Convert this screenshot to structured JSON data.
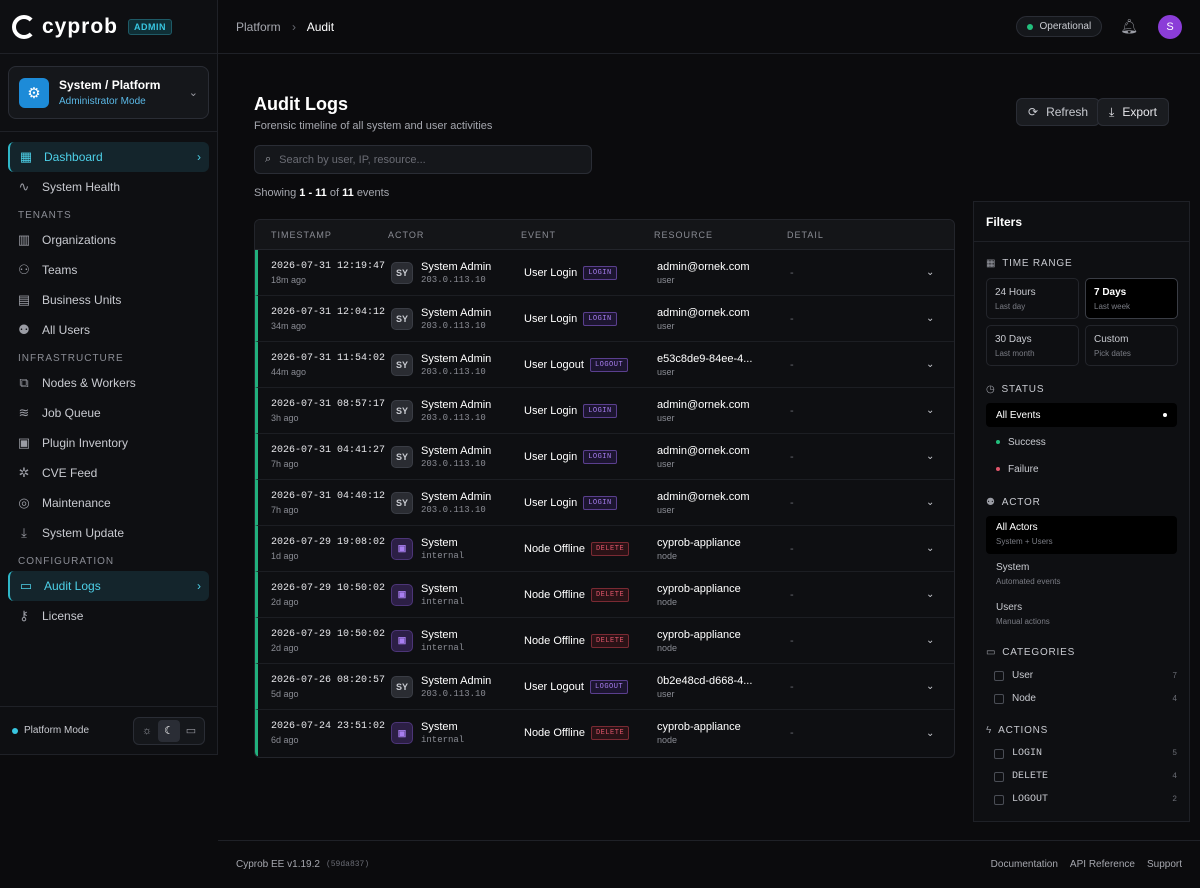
{
  "brand": {
    "name": "cyprob",
    "badge": "ADMIN"
  },
  "context": {
    "title": "System / Platform",
    "subtitle": "Administrator Mode"
  },
  "nav": {
    "top": [
      {
        "label": "Dashboard",
        "icon": "grid-icon",
        "active": true
      },
      {
        "label": "System Health",
        "icon": "pulse-icon"
      }
    ],
    "tenants_heading": "TENANTS",
    "tenants": [
      {
        "label": "Organizations",
        "icon": "building-icon"
      },
      {
        "label": "Teams",
        "icon": "team-icon"
      },
      {
        "label": "Business Units",
        "icon": "briefcase-icon"
      },
      {
        "label": "All Users",
        "icon": "users-icon"
      }
    ],
    "infra_heading": "INFRASTRUCTURE",
    "infra": [
      {
        "label": "Nodes & Workers",
        "icon": "server-icon"
      },
      {
        "label": "Job Queue",
        "icon": "layers-icon"
      },
      {
        "label": "Plugin Inventory",
        "icon": "plugin-icon"
      },
      {
        "label": "CVE Feed",
        "icon": "bug-icon"
      },
      {
        "label": "Maintenance",
        "icon": "database-icon"
      },
      {
        "label": "System Update",
        "icon": "download-icon"
      }
    ],
    "config_heading": "CONFIGURATION",
    "config": [
      {
        "label": "Audit Logs",
        "icon": "log-icon",
        "active": true
      },
      {
        "label": "License",
        "icon": "key-icon"
      }
    ]
  },
  "sidebar_footer": {
    "mode": "Platform Mode",
    "mode_color": "#38c6e0"
  },
  "breadcrumb": {
    "root": "Platform",
    "current": "Audit"
  },
  "status": {
    "label": "Operational",
    "color": "#22c07d"
  },
  "user": {
    "initial": "S",
    "color": "#8b3dd8"
  },
  "page": {
    "title": "Audit Logs",
    "subtitle": "Forensic timeline of all system and user activities",
    "refresh_label": "Refresh",
    "export_label": "Export",
    "search_placeholder": "Search by user, IP, resource...",
    "showing_prefix": "Showing",
    "showing_range": "1 - 11",
    "showing_of": "of",
    "showing_total": "11",
    "showing_suffix": "events"
  },
  "table": {
    "columns": [
      "TIMESTAMP",
      "ACTOR",
      "EVENT",
      "RESOURCE",
      "DETAIL"
    ],
    "rows": [
      {
        "ts": "2026-07-31 12:19:47",
        "ago": "18m ago",
        "avatar": "SY",
        "kind": "sy",
        "actor": "System Admin",
        "actor_sub": "203.0.113.10",
        "event": "User Login",
        "tag": "LOGIN",
        "res": "admin@ornek.com",
        "res_type": "user",
        "detail": "-"
      },
      {
        "ts": "2026-07-31 12:04:12",
        "ago": "34m ago",
        "avatar": "SY",
        "kind": "sy",
        "actor": "System Admin",
        "actor_sub": "203.0.113.10",
        "event": "User Login",
        "tag": "LOGIN",
        "res": "admin@ornek.com",
        "res_type": "user",
        "detail": "-"
      },
      {
        "ts": "2026-07-31 11:54:02",
        "ago": "44m ago",
        "avatar": "SY",
        "kind": "sy",
        "actor": "System Admin",
        "actor_sub": "203.0.113.10",
        "event": "User Logout",
        "tag": "LOGOUT",
        "res": "e53c8de9-84ee-4...",
        "res_type": "user",
        "detail": "-"
      },
      {
        "ts": "2026-07-31 08:57:17",
        "ago": "3h ago",
        "avatar": "SY",
        "kind": "sy",
        "actor": "System Admin",
        "actor_sub": "203.0.113.10",
        "event": "User Login",
        "tag": "LOGIN",
        "res": "admin@ornek.com",
        "res_type": "user",
        "detail": "-"
      },
      {
        "ts": "2026-07-31 04:41:27",
        "ago": "7h ago",
        "avatar": "SY",
        "kind": "sy",
        "actor": "System Admin",
        "actor_sub": "203.0.113.10",
        "event": "User Login",
        "tag": "LOGIN",
        "res": "admin@ornek.com",
        "res_type": "user",
        "detail": "-"
      },
      {
        "ts": "2026-07-31 04:40:12",
        "ago": "7h ago",
        "avatar": "SY",
        "kind": "sy",
        "actor": "System Admin",
        "actor_sub": "203.0.113.10",
        "event": "User Login",
        "tag": "LOGIN",
        "res": "admin@ornek.com",
        "res_type": "user",
        "detail": "-"
      },
      {
        "ts": "2026-07-29 19:08:02",
        "ago": "1d ago",
        "avatar": "",
        "kind": "sys",
        "actor": "System",
        "actor_sub": "internal",
        "event": "Node Offline",
        "tag": "DELETE",
        "res": "cyprob-appliance",
        "res_type": "node",
        "detail": "-"
      },
      {
        "ts": "2026-07-29 10:50:02",
        "ago": "2d ago",
        "avatar": "",
        "kind": "sys",
        "actor": "System",
        "actor_sub": "internal",
        "event": "Node Offline",
        "tag": "DELETE",
        "res": "cyprob-appliance",
        "res_type": "node",
        "detail": "-"
      },
      {
        "ts": "2026-07-29 10:50:02",
        "ago": "2d ago",
        "avatar": "",
        "kind": "sys",
        "actor": "System",
        "actor_sub": "internal",
        "event": "Node Offline",
        "tag": "DELETE",
        "res": "cyprob-appliance",
        "res_type": "node",
        "detail": "-"
      },
      {
        "ts": "2026-07-26 08:20:57",
        "ago": "5d ago",
        "avatar": "SY",
        "kind": "sy",
        "actor": "System Admin",
        "actor_sub": "203.0.113.10",
        "event": "User Logout",
        "tag": "LOGOUT",
        "res": "0b2e48cd-d668-4...",
        "res_type": "user",
        "detail": "-"
      },
      {
        "ts": "2026-07-24 23:51:02",
        "ago": "6d ago",
        "avatar": "",
        "kind": "sys",
        "actor": "System",
        "actor_sub": "internal",
        "event": "Node Offline",
        "tag": "DELETE",
        "res": "cyprob-appliance",
        "res_type": "node",
        "detail": "-"
      }
    ]
  },
  "filters": {
    "title": "Filters",
    "time_heading": "TIME RANGE",
    "time": [
      {
        "label": "24 Hours",
        "sub": "Last day"
      },
      {
        "label": "7 Days",
        "sub": "Last week",
        "selected": true
      },
      {
        "label": "30 Days",
        "sub": "Last month"
      },
      {
        "label": "Custom",
        "sub": "Pick dates"
      }
    ],
    "status_heading": "STATUS",
    "status": [
      {
        "label": "All Events",
        "selected": true
      },
      {
        "label": "Success",
        "color": "#22c07d"
      },
      {
        "label": "Failure",
        "color": "#e0556a"
      }
    ],
    "actor_heading": "ACTOR",
    "actor": [
      {
        "label": "All Actors",
        "sub": "System + Users",
        "selected": true
      },
      {
        "label": "System",
        "sub": "Automated events"
      },
      {
        "label": "Users",
        "sub": "Manual actions"
      }
    ],
    "categories_heading": "CATEGORIES",
    "categories": [
      {
        "label": "User",
        "count": "7"
      },
      {
        "label": "Node",
        "count": "4"
      }
    ],
    "actions_heading": "ACTIONS",
    "actions": [
      {
        "label": "LOGIN",
        "count": "5"
      },
      {
        "label": "DELETE",
        "count": "4"
      },
      {
        "label": "LOGOUT",
        "count": "2"
      }
    ]
  },
  "footer": {
    "version": "Cyprob EE v1.19.2",
    "hash": "(59da837)",
    "links": [
      "Documentation",
      "API Reference",
      "Support"
    ]
  }
}
